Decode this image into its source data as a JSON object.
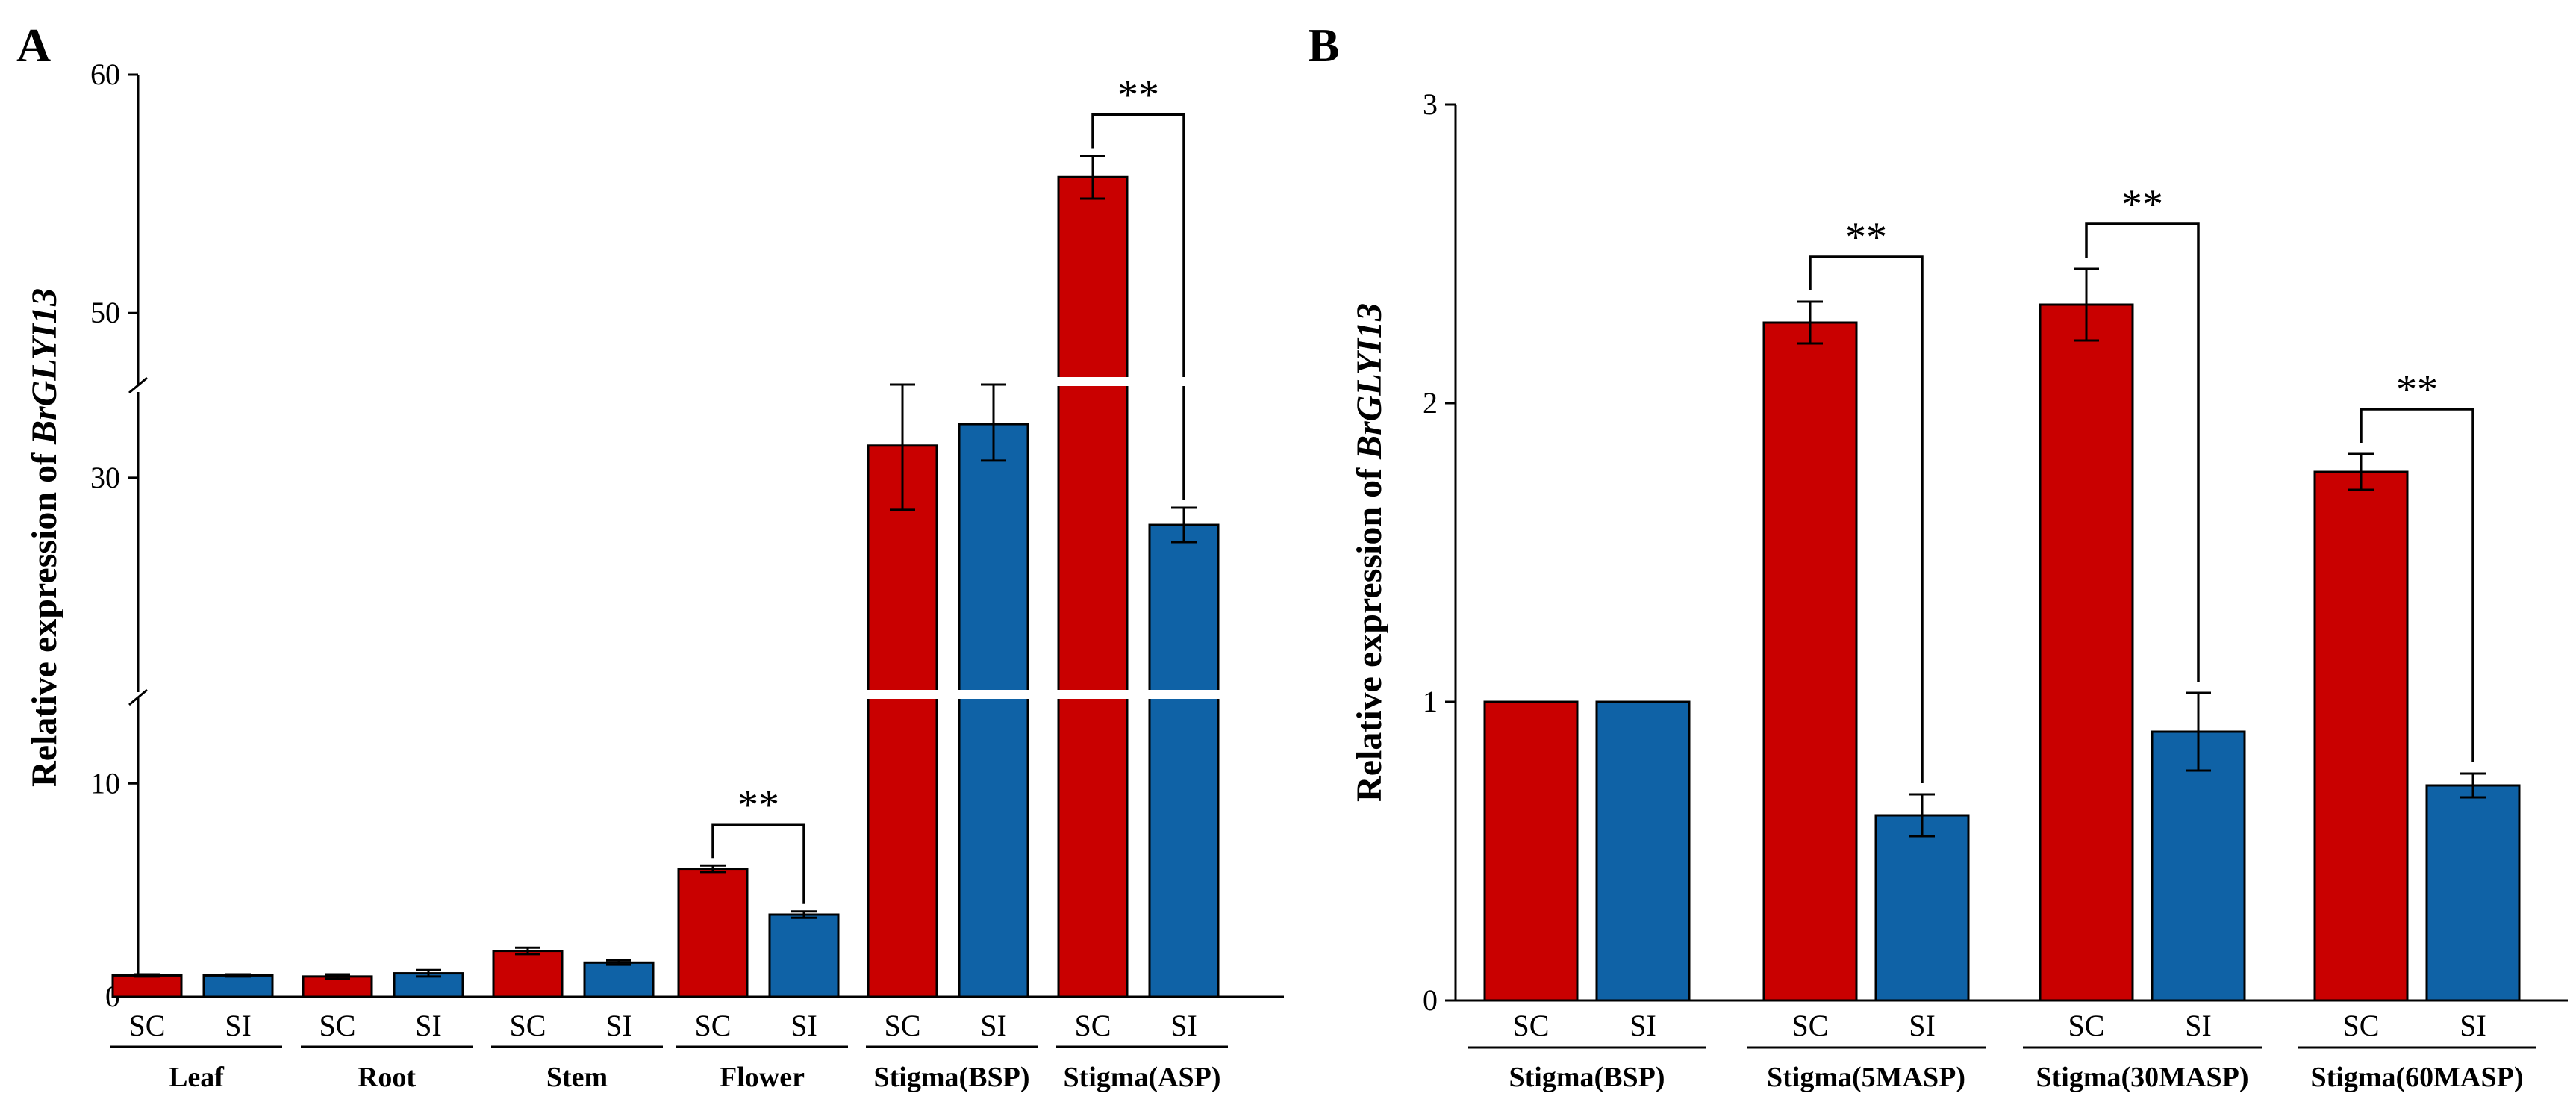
{
  "colors": {
    "SC": "#c90000",
    "SI": "#0f62a6",
    "axis": "#000000"
  },
  "chart_data": [
    {
      "panel": "A",
      "type": "bar",
      "ylabel_prefix": "Relative expression of ",
      "ylabel_gene": "BrGLYI13",
      "y_axis_broken": true,
      "y_segments": [
        {
          "range": [
            0,
            14
          ]
        },
        {
          "range": [
            20,
            34
          ]
        },
        {
          "range": [
            47,
            60
          ]
        }
      ],
      "yticks": [
        0,
        10,
        30,
        50,
        60
      ],
      "groups": [
        {
          "name": "Leaf",
          "bars": [
            {
              "label": "SC",
              "value": 1.0,
              "err": 0.05
            },
            {
              "label": "SI",
              "value": 1.0,
              "err": 0.05
            }
          ]
        },
        {
          "name": "Root",
          "bars": [
            {
              "label": "SC",
              "value": 0.95,
              "err": 0.1
            },
            {
              "label": "SI",
              "value": 1.1,
              "err": 0.15
            }
          ]
        },
        {
          "name": "Stem",
          "bars": [
            {
              "label": "SC",
              "value": 2.15,
              "err": 0.15
            },
            {
              "label": "SI",
              "value": 1.6,
              "err": 0.1
            }
          ]
        },
        {
          "name": "Flower",
          "bars": [
            {
              "label": "SC",
              "value": 6.0,
              "err": 0.15
            },
            {
              "label": "SI",
              "value": 3.85,
              "err": 0.15
            }
          ],
          "sig": "**"
        },
        {
          "name": "Stigma(BSP)",
          "bars": [
            {
              "label": "SC",
              "value": 31.5,
              "err": 3.0
            },
            {
              "label": "SI",
              "value": 32.5,
              "err": 1.7
            }
          ]
        },
        {
          "name": "Stigma(ASP)",
          "bars": [
            {
              "label": "SC",
              "value": 55.7,
              "err": 0.9
            },
            {
              "label": "SI",
              "value": 27.8,
              "err": 0.8
            }
          ],
          "sig": "**"
        }
      ]
    },
    {
      "panel": "B",
      "type": "bar",
      "ylabel_prefix": "Relative expression of ",
      "ylabel_gene": "BrGLYI13",
      "ylim": [
        0,
        3
      ],
      "yticks": [
        0,
        1,
        2,
        3
      ],
      "groups": [
        {
          "name": "Stigma(BSP)",
          "bars": [
            {
              "label": "SC",
              "value": 1.0,
              "err": 0.0
            },
            {
              "label": "SI",
              "value": 1.0,
              "err": 0.0
            }
          ]
        },
        {
          "name": "Stigma(5MASP)",
          "bars": [
            {
              "label": "SC",
              "value": 2.27,
              "err": 0.07
            },
            {
              "label": "SI",
              "value": 0.62,
              "err": 0.07
            }
          ],
          "sig": "**"
        },
        {
          "name": "Stigma(30MASP)",
          "bars": [
            {
              "label": "SC",
              "value": 2.33,
              "err": 0.12
            },
            {
              "label": "SI",
              "value": 0.9,
              "err": 0.13
            }
          ],
          "sig": "**"
        },
        {
          "name": "Stigma(60MASP)",
          "bars": [
            {
              "label": "SC",
              "value": 1.77,
              "err": 0.06
            },
            {
              "label": "SI",
              "value": 0.72,
              "err": 0.04
            }
          ],
          "sig": "**"
        }
      ]
    }
  ]
}
